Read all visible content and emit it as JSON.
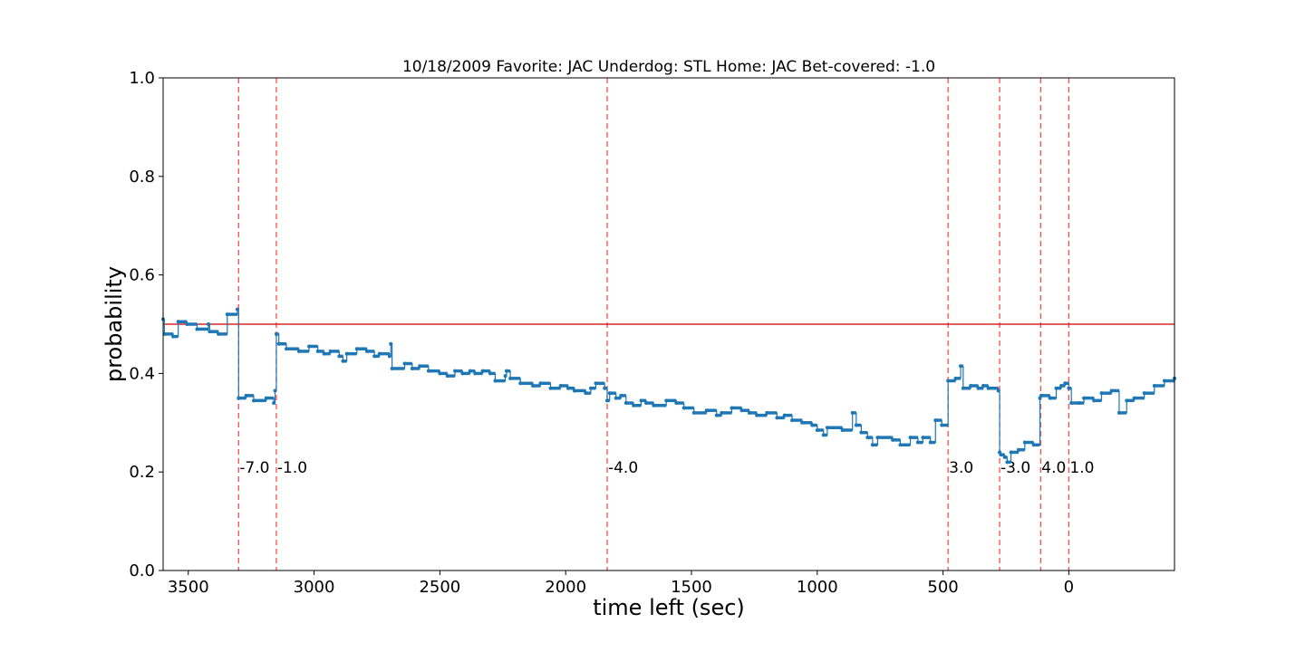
{
  "chart_data": {
    "type": "line",
    "title": "10/18/2009 Favorite: JAC Underdog: STL Home: JAC Bet-covered: -1.0",
    "xlabel": "time left (sec)",
    "ylabel": "probability",
    "xlim": [
      3600,
      -420
    ],
    "ylim": [
      0.0,
      1.0
    ],
    "x_ticks": [
      3500,
      3000,
      2500,
      2000,
      1500,
      1000,
      500,
      0
    ],
    "y_ticks": [
      "0.0",
      "0.2",
      "0.4",
      "0.6",
      "0.8",
      "1.0"
    ],
    "grid": false,
    "reference_line": {
      "y": 0.5,
      "color": "#d62728"
    },
    "series": [
      {
        "color": "#1f77b4",
        "step": true,
        "points": [
          [
            3600,
            0.51
          ],
          [
            3595,
            0.48
          ],
          [
            3560,
            0.475
          ],
          [
            3540,
            0.505
          ],
          [
            3505,
            0.5
          ],
          [
            3465,
            0.49
          ],
          [
            3420,
            0.5
          ],
          [
            3415,
            0.485
          ],
          [
            3380,
            0.48
          ],
          [
            3345,
            0.52
          ],
          [
            3305,
            0.53
          ],
          [
            3300,
            0.35
          ],
          [
            3270,
            0.355
          ],
          [
            3240,
            0.345
          ],
          [
            3190,
            0.35
          ],
          [
            3160,
            0.34
          ],
          [
            3155,
            0.365
          ],
          [
            3150,
            0.48
          ],
          [
            3140,
            0.46
          ],
          [
            3110,
            0.45
          ],
          [
            3060,
            0.445
          ],
          [
            3020,
            0.455
          ],
          [
            2985,
            0.445
          ],
          [
            2960,
            0.44
          ],
          [
            2935,
            0.445
          ],
          [
            2900,
            0.435
          ],
          [
            2885,
            0.425
          ],
          [
            2870,
            0.44
          ],
          [
            2830,
            0.45
          ],
          [
            2790,
            0.445
          ],
          [
            2760,
            0.435
          ],
          [
            2740,
            0.44
          ],
          [
            2700,
            0.435
          ],
          [
            2695,
            0.46
          ],
          [
            2690,
            0.41
          ],
          [
            2640,
            0.42
          ],
          [
            2610,
            0.41
          ],
          [
            2580,
            0.415
          ],
          [
            2545,
            0.405
          ],
          [
            2500,
            0.4
          ],
          [
            2470,
            0.395
          ],
          [
            2440,
            0.405
          ],
          [
            2410,
            0.4
          ],
          [
            2380,
            0.405
          ],
          [
            2360,
            0.4
          ],
          [
            2330,
            0.405
          ],
          [
            2300,
            0.4
          ],
          [
            2280,
            0.385
          ],
          [
            2240,
            0.395
          ],
          [
            2235,
            0.405
          ],
          [
            2220,
            0.39
          ],
          [
            2180,
            0.38
          ],
          [
            2130,
            0.375
          ],
          [
            2100,
            0.38
          ],
          [
            2060,
            0.37
          ],
          [
            2020,
            0.375
          ],
          [
            1990,
            0.37
          ],
          [
            1965,
            0.365
          ],
          [
            1920,
            0.36
          ],
          [
            1900,
            0.37
          ],
          [
            1880,
            0.38
          ],
          [
            1845,
            0.37
          ],
          [
            1835,
            0.345
          ],
          [
            1825,
            0.36
          ],
          [
            1800,
            0.35
          ],
          [
            1780,
            0.355
          ],
          [
            1760,
            0.34
          ],
          [
            1730,
            0.335
          ],
          [
            1700,
            0.345
          ],
          [
            1680,
            0.34
          ],
          [
            1650,
            0.335
          ],
          [
            1600,
            0.345
          ],
          [
            1560,
            0.34
          ],
          [
            1530,
            0.33
          ],
          [
            1490,
            0.32
          ],
          [
            1440,
            0.325
          ],
          [
            1400,
            0.315
          ],
          [
            1380,
            0.32
          ],
          [
            1340,
            0.33
          ],
          [
            1300,
            0.325
          ],
          [
            1270,
            0.32
          ],
          [
            1240,
            0.315
          ],
          [
            1200,
            0.32
          ],
          [
            1160,
            0.31
          ],
          [
            1130,
            0.315
          ],
          [
            1100,
            0.305
          ],
          [
            1060,
            0.3
          ],
          [
            1020,
            0.295
          ],
          [
            1000,
            0.285
          ],
          [
            975,
            0.275
          ],
          [
            960,
            0.29
          ],
          [
            900,
            0.285
          ],
          [
            860,
            0.32
          ],
          [
            845,
            0.295
          ],
          [
            825,
            0.28
          ],
          [
            800,
            0.27
          ],
          [
            780,
            0.255
          ],
          [
            760,
            0.27
          ],
          [
            700,
            0.265
          ],
          [
            670,
            0.255
          ],
          [
            630,
            0.27
          ],
          [
            600,
            0.26
          ],
          [
            580,
            0.27
          ],
          [
            550,
            0.26
          ],
          [
            530,
            0.305
          ],
          [
            505,
            0.295
          ],
          [
            480,
            0.385
          ],
          [
            450,
            0.39
          ],
          [
            430,
            0.415
          ],
          [
            420,
            0.37
          ],
          [
            390,
            0.375
          ],
          [
            360,
            0.37
          ],
          [
            340,
            0.375
          ],
          [
            320,
            0.37
          ],
          [
            280,
            0.365
          ],
          [
            275,
            0.24
          ],
          [
            270,
            0.235
          ],
          [
            255,
            0.23
          ],
          [
            245,
            0.22
          ],
          [
            230,
            0.24
          ],
          [
            200,
            0.245
          ],
          [
            175,
            0.26
          ],
          [
            140,
            0.255
          ],
          [
            115,
            0.35
          ],
          [
            110,
            0.355
          ],
          [
            75,
            0.35
          ],
          [
            50,
            0.37
          ],
          [
            30,
            0.375
          ],
          [
            15,
            0.38
          ],
          [
            0,
            0.37
          ],
          [
            -10,
            0.34
          ],
          [
            -40,
            0.34
          ],
          [
            -60,
            0.35
          ],
          [
            -100,
            0.345
          ],
          [
            -130,
            0.36
          ],
          [
            -170,
            0.365
          ],
          [
            -200,
            0.32
          ],
          [
            -230,
            0.345
          ],
          [
            -260,
            0.35
          ],
          [
            -300,
            0.36
          ],
          [
            -340,
            0.375
          ],
          [
            -380,
            0.385
          ],
          [
            -420,
            0.39
          ]
        ]
      }
    ],
    "score_events": [
      {
        "x": 3300,
        "label": "-7.0"
      },
      {
        "x": 3150,
        "label": "-1.0"
      },
      {
        "x": 1835,
        "label": "-4.0"
      },
      {
        "x": 480,
        "label": "3.0"
      },
      {
        "x": 275,
        "label": "-3.0"
      },
      {
        "x": 112,
        "label": "4.0"
      },
      {
        "x": 0,
        "label": "1.0"
      }
    ],
    "score_label_y": 0.21,
    "event_line_color": "#ff0000"
  }
}
